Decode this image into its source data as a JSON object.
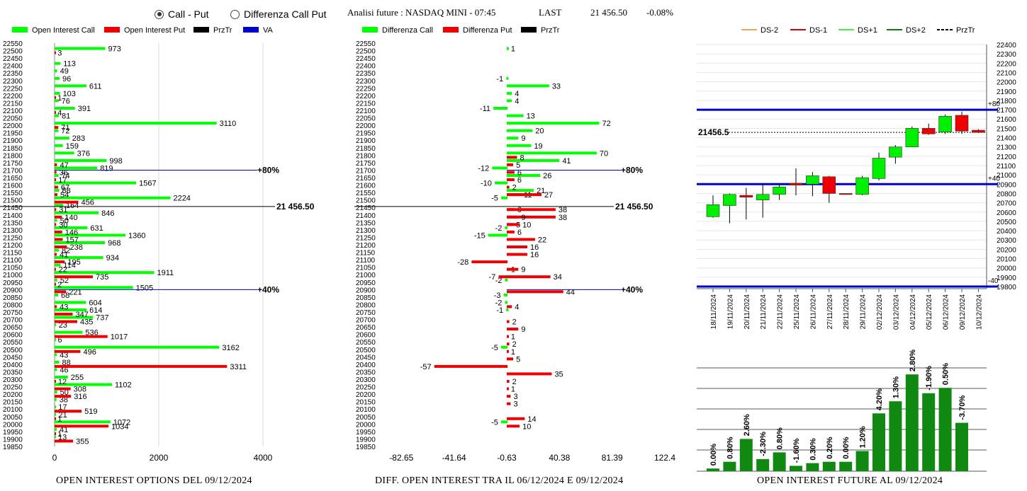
{
  "header": {
    "radio_call_put": "Call - Put",
    "radio_diff": "Differenza Call Put",
    "selected": "call_put",
    "analysis_title": "Analisi future : NASDAQ MINI - 07:45",
    "last_label": "LAST",
    "last_value": "21 456.50",
    "last_change": "-0.08%"
  },
  "colors": {
    "call": "#00ff00",
    "put": "#ee0000",
    "przTr": "#000000",
    "va": "#0000cc",
    "bar_green": "#118811"
  },
  "chart_data": [
    {
      "type": "bar",
      "orientation": "horizontal",
      "title": "OPEN INTEREST OPTIONS DEL 09/12/2024",
      "legend": [
        "Open Interest Call",
        "Open Interest Put",
        "PrzTr",
        "VA"
      ],
      "xlim": [
        0,
        4500
      ],
      "xticks": [
        "0",
        "2000",
        "4000"
      ],
      "yticks": [
        "22550",
        "22500",
        "22450",
        "22400",
        "22350",
        "22300",
        "22250",
        "22200",
        "22150",
        "22100",
        "22050",
        "22000",
        "21950",
        "21900",
        "21850",
        "21800",
        "21750",
        "21700",
        "21650",
        "21600",
        "21550",
        "21500",
        "21450",
        "21400",
        "21350",
        "21300",
        "21250",
        "21200",
        "21150",
        "21100",
        "21050",
        "21000",
        "20950",
        "20900",
        "20850",
        "20800",
        "20750",
        "20700",
        "20650",
        "20600",
        "20550",
        "20500",
        "20450",
        "20400",
        "20350",
        "20300",
        "20250",
        "20200",
        "20150",
        "20100",
        "20050",
        "20000",
        "19950",
        "19900",
        "19850"
      ],
      "series": [
        {
          "name": "Open Interest Call",
          "points": [
            [
              22500,
              973
            ],
            [
              22400,
              113
            ],
            [
              22350,
              49
            ],
            [
              22300,
              96
            ],
            [
              22250,
              611
            ],
            [
              22200,
              103
            ],
            [
              22150,
              76
            ],
            [
              22100,
              391
            ],
            [
              22050,
              81
            ],
            [
              22000,
              3110
            ],
            [
              21950,
              72
            ],
            [
              21900,
              283
            ],
            [
              21850,
              159
            ],
            [
              21800,
              376
            ],
            [
              21750,
              998
            ],
            [
              21700,
              819
            ],
            [
              21650,
              74
            ],
            [
              21600,
              1567
            ],
            [
              21550,
              88
            ],
            [
              21500,
              2224
            ],
            [
              21450,
              164
            ],
            [
              21400,
              846
            ],
            [
              21350,
              50
            ],
            [
              21300,
              631
            ],
            [
              21250,
              1360
            ],
            [
              21200,
              968
            ],
            [
              21150,
              82
            ],
            [
              21100,
              934
            ],
            [
              21050,
              114
            ],
            [
              21000,
              1911
            ],
            [
              20950,
              52
            ],
            [
              20900,
              1505
            ],
            [
              20850,
              68
            ],
            [
              20800,
              604
            ],
            [
              20750,
              614
            ],
            [
              20700,
              737
            ],
            [
              20650,
              23
            ],
            [
              20600,
              536
            ],
            [
              20550,
              6
            ],
            [
              20500,
              3162
            ],
            [
              20450,
              43
            ],
            [
              20400,
              88
            ],
            [
              20350,
              46
            ],
            [
              20300,
              255
            ],
            [
              20250,
              1102
            ],
            [
              20200,
              50
            ],
            [
              20150,
              38
            ],
            [
              20100,
              17
            ],
            [
              20050,
              21
            ],
            [
              20000,
              1072
            ],
            [
              19950,
              41
            ],
            [
              19900,
              13
            ]
          ]
        },
        {
          "name": "Open Interest Put",
          "points": [
            [
              22500,
              3
            ],
            [
              22200,
              1
            ],
            [
              22100,
              4
            ],
            [
              22000,
              71
            ],
            [
              21750,
              47
            ],
            [
              21700,
              36
            ],
            [
              21650,
              17
            ],
            [
              21600,
              67
            ],
            [
              21550,
              54
            ],
            [
              21500,
              456
            ],
            [
              21450,
              31
            ],
            [
              21400,
              140
            ],
            [
              21350,
              30
            ],
            [
              21300,
              146
            ],
            [
              21250,
              157
            ],
            [
              21200,
              238
            ],
            [
              21150,
              41
            ],
            [
              21100,
              195
            ],
            [
              21050,
              22
            ],
            [
              21000,
              735
            ],
            [
              20950,
              2
            ],
            [
              20900,
              221
            ],
            [
              20800,
              43
            ],
            [
              20750,
              347
            ],
            [
              20700,
              435
            ],
            [
              20600,
              1017
            ],
            [
              20500,
              496
            ],
            [
              20400,
              3311
            ],
            [
              20300,
              12
            ],
            [
              20250,
              308
            ],
            [
              20200,
              316
            ],
            [
              20100,
              519
            ],
            [
              20050,
              1
            ],
            [
              20000,
              1034
            ],
            [
              19950,
              1
            ],
            [
              19900,
              355
            ]
          ]
        }
      ],
      "przTr": {
        "value": 21456.5,
        "label": "21 456.50"
      },
      "va_lines": [
        {
          "value": 21700,
          "label": "+80%"
        },
        {
          "value": 20900,
          "label": "+40%"
        }
      ]
    },
    {
      "type": "bar",
      "orientation": "horizontal",
      "title": "DIFF. OPEN INTEREST TRA IL 06/12/2024 E 09/12/2024",
      "legend": [
        "Differenza Call",
        "Differenza Put",
        "PrzTr"
      ],
      "xlim": [
        -82.65,
        122.4
      ],
      "xticks": [
        "-82.65",
        "-41.64",
        "-0.63",
        "40.38",
        "81.39",
        "122.4"
      ],
      "series": [
        {
          "name": "Differenza Call",
          "points": [
            [
              22500,
              1
            ],
            [
              22300,
              -1
            ],
            [
              22250,
              33
            ],
            [
              22200,
              4
            ],
            [
              22150,
              4
            ],
            [
              22100,
              -11
            ],
            [
              22050,
              13
            ],
            [
              22000,
              72
            ],
            [
              21950,
              20
            ],
            [
              21900,
              9
            ],
            [
              21850,
              19
            ],
            [
              21800,
              70
            ],
            [
              21750,
              41
            ],
            [
              21700,
              -12
            ],
            [
              21650,
              26
            ],
            [
              21600,
              -10
            ],
            [
              21550,
              21
            ],
            [
              21500,
              -5
            ],
            [
              21300,
              -2
            ],
            [
              21250,
              -15
            ],
            [
              20950,
              -2
            ],
            [
              20850,
              -3
            ],
            [
              20800,
              -2
            ],
            [
              20750,
              -1
            ],
            [
              20500,
              -5
            ],
            [
              20000,
              -5
            ]
          ]
        },
        {
          "name": "Differenza Put",
          "points": [
            [
              21800,
              8
            ],
            [
              21750,
              5
            ],
            [
              21700,
              6
            ],
            [
              21650,
              6
            ],
            [
              21600,
              2
            ],
            [
              21550,
              11
            ],
            [
              21550,
              27
            ],
            [
              21450,
              6
            ],
            [
              21450,
              38
            ],
            [
              21400,
              38
            ],
            [
              21400,
              9
            ],
            [
              21350,
              5
            ],
            [
              21350,
              10
            ],
            [
              21300,
              6
            ],
            [
              21250,
              22
            ],
            [
              21200,
              16
            ],
            [
              21150,
              16
            ],
            [
              21100,
              -28
            ],
            [
              21050,
              1
            ],
            [
              21050,
              9
            ],
            [
              21000,
              -7
            ],
            [
              21000,
              34
            ],
            [
              20900,
              44
            ],
            [
              20800,
              4
            ],
            [
              20700,
              2
            ],
            [
              20650,
              9
            ],
            [
              20600,
              1
            ],
            [
              20550,
              2
            ],
            [
              20500,
              1
            ],
            [
              20450,
              5
            ],
            [
              20400,
              -57
            ],
            [
              20350,
              35
            ],
            [
              20300,
              2
            ],
            [
              20250,
              1
            ],
            [
              20200,
              3
            ],
            [
              20150,
              3
            ],
            [
              20050,
              14
            ],
            [
              20000,
              10
            ]
          ]
        }
      ],
      "przTr": {
        "value": 21456.5,
        "label": "21 456.50"
      },
      "va_lines": [
        {
          "value": 21700,
          "label": "+80%"
        },
        {
          "value": 20900,
          "label": "+40%"
        }
      ]
    },
    {
      "type": "candlestick",
      "legend": [
        "DS-2",
        "DS-1",
        "DS+1",
        "DS+2",
        "PrzTr"
      ],
      "ylim": [
        19800,
        22400
      ],
      "yticks": [
        "22400",
        "22300",
        "22200",
        "22100",
        "22000",
        "21900",
        "21800",
        "21700",
        "21600",
        "21500",
        "21400",
        "21300",
        "21200",
        "21100",
        "21000",
        "20900",
        "20800",
        "20700",
        "20600",
        "20500",
        "20400",
        "20300",
        "20200",
        "20100",
        "20000",
        "19900",
        "19800"
      ],
      "x": [
        "18/11/2024",
        "19/11/2024",
        "20/11/2024",
        "21/11/2024",
        "22/11/2024",
        "25/11/2024",
        "26/11/2024",
        "27/11/2024",
        "28/11/2024",
        "29/11/2024",
        "02/12/2024",
        "03/12/2024",
        "04/12/2024",
        "05/12/2024",
        "06/12/2024",
        "09/12/2024",
        "10/12/2024"
      ],
      "candles": [
        {
          "o": 20550,
          "c": 20680,
          "h": 20780,
          "l": 20540,
          "up": true
        },
        {
          "o": 20670,
          "c": 20790,
          "h": 20800,
          "l": 20480,
          "up": true
        },
        {
          "o": 20780,
          "c": 20760,
          "h": 20860,
          "l": 20520,
          "up": false
        },
        {
          "o": 20730,
          "c": 20790,
          "h": 20900,
          "l": 20540,
          "up": true
        },
        {
          "o": 20790,
          "c": 20870,
          "h": 20900,
          "l": 20730,
          "up": true
        },
        {
          "o": 20910,
          "c": 20890,
          "h": 21070,
          "l": 20780,
          "up": false
        },
        {
          "o": 20900,
          "c": 20990,
          "h": 21030,
          "l": 20770,
          "up": true
        },
        {
          "o": 20980,
          "c": 20800,
          "h": 20990,
          "l": 20700,
          "up": false
        },
        {
          "o": 20800,
          "c": 20800,
          "h": 20800,
          "l": 20800,
          "up": false
        },
        {
          "o": 20790,
          "c": 20970,
          "h": 20990,
          "l": 20780,
          "up": true
        },
        {
          "o": 20960,
          "c": 21180,
          "h": 21240,
          "l": 20940,
          "up": true
        },
        {
          "o": 21190,
          "c": 21300,
          "h": 21320,
          "l": 21120,
          "up": true
        },
        {
          "o": 21300,
          "c": 21500,
          "h": 21520,
          "l": 21300,
          "up": true
        },
        {
          "o": 21500,
          "c": 21440,
          "h": 21550,
          "l": 21430,
          "up": false
        },
        {
          "o": 21460,
          "c": 21630,
          "h": 21650,
          "l": 21440,
          "up": true
        },
        {
          "o": 21640,
          "c": 21470,
          "h": 21680,
          "l": 21440,
          "up": false
        },
        {
          "o": 21480,
          "c": 21456.5,
          "h": 21490,
          "l": 21450,
          "up": false
        }
      ],
      "h_lines": [
        {
          "value": 21700,
          "label": "+80"
        },
        {
          "value": 20900,
          "label": "+40"
        },
        {
          "value": 19800,
          "label": "-40"
        }
      ],
      "przTr": {
        "value": 21456.5,
        "label": "21456.5"
      }
    },
    {
      "type": "bar",
      "title": "OPEN INTEREST FUTURE AL 09/12/2024",
      "categories": [
        "18/11/2024",
        "19/11/2024",
        "20/11/2024",
        "21/11/2024",
        "22/11/2024",
        "25/11/2024",
        "26/11/2024",
        "27/11/2024",
        "28/11/2024",
        "29/11/2024",
        "02/12/2024",
        "03/12/2024",
        "04/12/2024",
        "05/12/2024",
        "06/12/2024",
        "09/12/2024"
      ],
      "labels": [
        "0.00%",
        "0.80%",
        "2.60%",
        "-2.30%",
        "0.80%",
        "-1.60%",
        "0.30%",
        "0.20%",
        "0.00%",
        "1.20%",
        "4.20%",
        "1.30%",
        "2.80%",
        "-1.90%",
        "0.50%",
        "-3.70%"
      ],
      "values": [
        2,
        7,
        24,
        9,
        14,
        4,
        6,
        7,
        7,
        15,
        43,
        52,
        72,
        58,
        62,
        36
      ],
      "grid": true
    }
  ]
}
